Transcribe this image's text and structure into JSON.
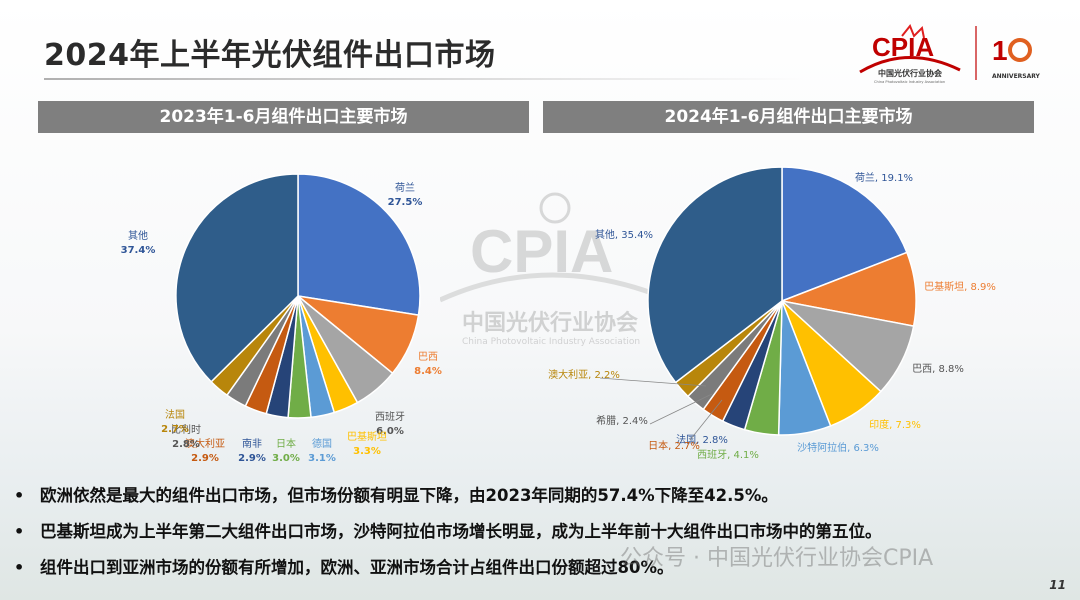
{
  "page": {
    "title": "2024年上半年光伏组件出口市场",
    "page_number": "11",
    "watermark_text": "公众号 · 中国光伏行业协会CPIA"
  },
  "logo": {
    "brand": "CPIA",
    "org_cn": "中国光伏行业协会",
    "org_en": "China Photovoltaic Industry Association",
    "anniversary": "ANNIVERSARY"
  },
  "watermark": {
    "brand": "CPIA",
    "org_cn": "中国光伏行业协会",
    "org_en": "China Photovoltaic Industry Association"
  },
  "chart_data": [
    {
      "type": "pie",
      "title": "2023年1-6月组件出口主要市场",
      "slices": [
        {
          "label": "荷兰",
          "value": 27.5,
          "value_text": "27.5%",
          "color": "#4472c4"
        },
        {
          "label": "巴西",
          "value": 8.4,
          "value_text": "8.4%",
          "color": "#ed7d31"
        },
        {
          "label": "西班牙",
          "value": 6.0,
          "value_text": "6.0%",
          "color": "#a5a5a5"
        },
        {
          "label": "巴基斯坦",
          "value": 3.3,
          "value_text": "3.3%",
          "color": "#ffc000"
        },
        {
          "label": "德国",
          "value": 3.1,
          "value_text": "3.1%",
          "color": "#5b9bd5"
        },
        {
          "label": "日本",
          "value": 3.0,
          "value_text": "3.0%",
          "color": "#70ad47"
        },
        {
          "label": "南非",
          "value": 2.9,
          "value_text": "2.9%",
          "color": "#264478"
        },
        {
          "label": "澳大利亚",
          "value": 2.9,
          "value_text": "2.9%",
          "color": "#c55a11"
        },
        {
          "label": "比利时",
          "value": 2.8,
          "value_text": "2.8%",
          "color": "#7b7b7b"
        },
        {
          "label": "法国",
          "value": 2.7,
          "value_text": "2.7%",
          "color": "#b8860b"
        },
        {
          "label": "其他",
          "value": 37.4,
          "value_text": "37.4%",
          "color": "#2f5d8a"
        }
      ]
    },
    {
      "type": "pie",
      "title": "2024年1-6月组件出口主要市场",
      "slices": [
        {
          "label": "荷兰",
          "value": 19.1,
          "value_text": "19.1%",
          "color": "#4472c4"
        },
        {
          "label": "巴基斯坦",
          "value": 8.9,
          "value_text": "8.9%",
          "color": "#ed7d31"
        },
        {
          "label": "巴西",
          "value": 8.8,
          "value_text": "8.8%",
          "color": "#a5a5a5"
        },
        {
          "label": "印度",
          "value": 7.3,
          "value_text": "7.3%",
          "color": "#ffc000"
        },
        {
          "label": "沙特阿拉伯",
          "value": 6.3,
          "value_text": "6.3%",
          "color": "#5b9bd5"
        },
        {
          "label": "西班牙",
          "value": 4.1,
          "value_text": "4.1%",
          "color": "#70ad47"
        },
        {
          "label": "法国",
          "value": 2.8,
          "value_text": "2.8%",
          "color": "#264478"
        },
        {
          "label": "日本",
          "value": 2.7,
          "value_text": "2.7%",
          "color": "#c55a11"
        },
        {
          "label": "希腊",
          "value": 2.4,
          "value_text": "2.4%",
          "color": "#7b7b7b"
        },
        {
          "label": "澳大利亚",
          "value": 2.2,
          "value_text": "2.2%",
          "color": "#b8860b"
        },
        {
          "label": "其他",
          "value": 35.4,
          "value_text": "35.4%",
          "color": "#2f5d8a"
        }
      ]
    }
  ],
  "bullets": [
    "欧洲依然是最大的组件出口市场，但市场份额有明显下降，由2023年同期的57.4%下降至42.5%。",
    "巴基斯坦成为上半年第二大组件出口市场，沙特阿拉伯市场增长明显，成为上半年前十大组件出口市场中的第五位。",
    "组件出口到亚洲市场的份额有所增加，欧洲、亚洲市场合计占组件出口份额超过80%。"
  ]
}
